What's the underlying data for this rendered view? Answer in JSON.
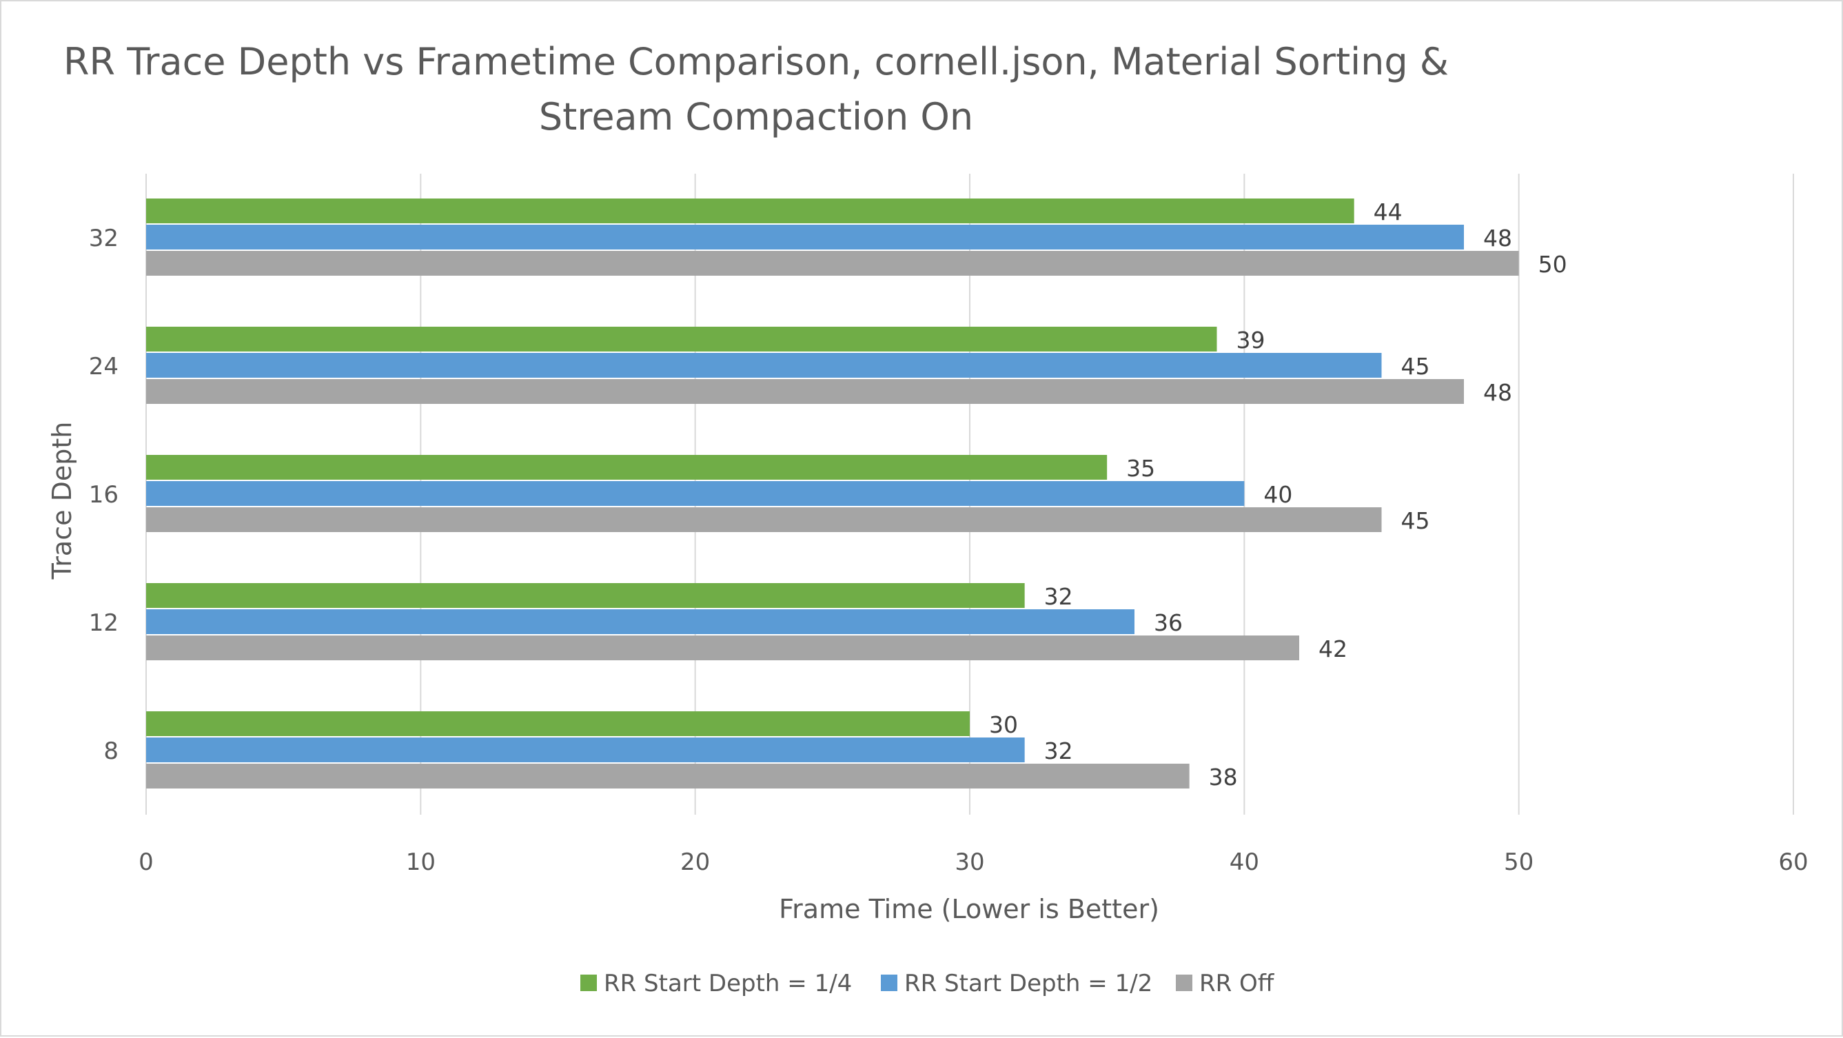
{
  "chart_data": {
    "type": "bar",
    "orientation": "horizontal",
    "title_lines": [
      "RR Trace Depth vs Frametime Comparison, cornell.json, Material Sorting &",
      "Stream Compaction On"
    ],
    "xlabel": "Frame Time (Lower is Better)",
    "ylabel": "Trace Depth",
    "xlim": [
      0,
      60
    ],
    "xticks": [
      "0",
      "10",
      "20",
      "30",
      "40",
      "50",
      "60"
    ],
    "categories": [
      "8",
      "12",
      "16",
      "24",
      "32"
    ],
    "series": [
      {
        "name": "RR Start Depth = 1/4",
        "color": "#70ad47",
        "values": [
          30,
          32,
          35,
          39,
          44
        ]
      },
      {
        "name": "RR Start Depth = 1/2",
        "color": "#5b9bd5",
        "values": [
          32,
          36,
          40,
          45,
          48
        ]
      },
      {
        "name": "RR Off",
        "color": "#a5a5a5",
        "values": [
          38,
          42,
          45,
          48,
          50
        ]
      }
    ],
    "grid": true,
    "legend": "bottom",
    "data_labels": true
  }
}
